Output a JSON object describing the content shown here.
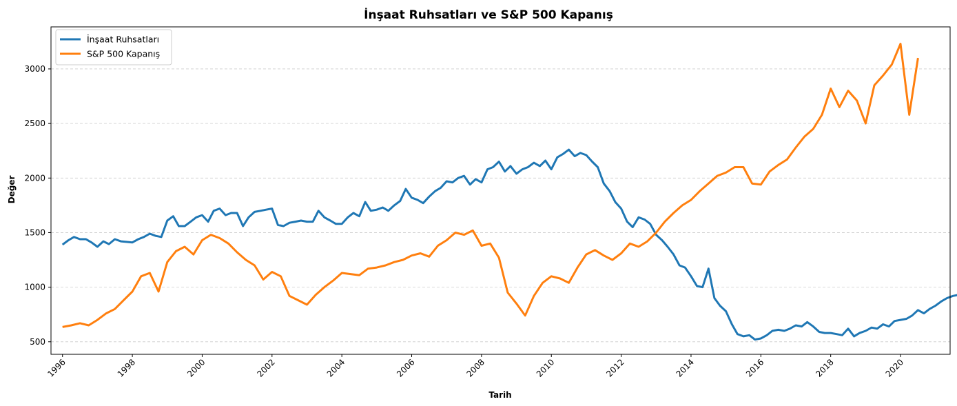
{
  "chart_data": {
    "type": "line",
    "title": "İnşaat Ruhsatları ve S&P 500 Kapanış",
    "xlabel": "Tarih",
    "ylabel": "Değer",
    "xlim": [
      1995.67,
      2021.42
    ],
    "ylim": [
      385,
      3385
    ],
    "x_ticks": [
      "1996",
      "1998",
      "2000",
      "2002",
      "2004",
      "2006",
      "2008",
      "2010",
      "2012",
      "2014",
      "2016",
      "2018",
      "2020"
    ],
    "y_ticks": [
      "500",
      "1000",
      "1500",
      "2000",
      "2500",
      "3000"
    ],
    "grid": "horizontal dashed",
    "legend_position": "upper-left",
    "series": [
      {
        "name": "İnşaat Ruhsatları",
        "color": "#1f77b4",
        "points": [
          [
            1996.0,
            1390
          ],
          [
            1996.17,
            1430
          ],
          [
            1996.33,
            1460
          ],
          [
            1996.5,
            1440
          ],
          [
            1996.67,
            1440
          ],
          [
            1996.83,
            1410
          ],
          [
            1997.0,
            1370
          ],
          [
            1997.17,
            1420
          ],
          [
            1997.33,
            1395
          ],
          [
            1997.5,
            1440
          ],
          [
            1997.67,
            1420
          ],
          [
            1997.83,
            1415
          ],
          [
            1998.0,
            1410
          ],
          [
            1998.17,
            1440
          ],
          [
            1998.33,
            1460
          ],
          [
            1998.5,
            1490
          ],
          [
            1998.67,
            1470
          ],
          [
            1998.83,
            1460
          ],
          [
            1999.0,
            1610
          ],
          [
            1999.17,
            1650
          ],
          [
            1999.33,
            1560
          ],
          [
            1999.5,
            1560
          ],
          [
            1999.67,
            1600
          ],
          [
            1999.83,
            1640
          ],
          [
            2000.0,
            1660
          ],
          [
            2000.17,
            1600
          ],
          [
            2000.33,
            1700
          ],
          [
            2000.5,
            1720
          ],
          [
            2000.67,
            1660
          ],
          [
            2000.83,
            1680
          ],
          [
            2001.0,
            1680
          ],
          [
            2001.17,
            1560
          ],
          [
            2001.33,
            1640
          ],
          [
            2001.5,
            1690
          ],
          [
            2001.67,
            1700
          ],
          [
            2001.83,
            1710
          ],
          [
            2002.0,
            1720
          ],
          [
            2002.17,
            1570
          ],
          [
            2002.33,
            1560
          ],
          [
            2002.5,
            1590
          ],
          [
            2002.67,
            1600
          ],
          [
            2002.83,
            1610
          ],
          [
            2003.0,
            1600
          ],
          [
            2003.17,
            1600
          ],
          [
            2003.33,
            1700
          ],
          [
            2003.5,
            1640
          ],
          [
            2003.67,
            1610
          ],
          [
            2003.83,
            1580
          ],
          [
            2004.0,
            1580
          ],
          [
            2004.17,
            1640
          ],
          [
            2004.33,
            1680
          ],
          [
            2004.5,
            1650
          ],
          [
            2004.67,
            1780
          ],
          [
            2004.83,
            1700
          ],
          [
            2005.0,
            1710
          ],
          [
            2005.17,
            1730
          ],
          [
            2005.33,
            1700
          ],
          [
            2005.5,
            1750
          ],
          [
            2005.67,
            1790
          ],
          [
            2005.83,
            1900
          ],
          [
            2006.0,
            1820
          ],
          [
            2006.17,
            1800
          ],
          [
            2006.33,
            1770
          ],
          [
            2006.5,
            1830
          ],
          [
            2006.67,
            1880
          ],
          [
            2006.83,
            1910
          ],
          [
            2007.0,
            1970
          ],
          [
            2007.17,
            1960
          ],
          [
            2007.33,
            2000
          ],
          [
            2007.5,
            2020
          ],
          [
            2007.67,
            1940
          ],
          [
            2007.83,
            1990
          ],
          [
            2008.0,
            1960
          ],
          [
            2008.17,
            2080
          ],
          [
            2008.33,
            2100
          ],
          [
            2008.5,
            2150
          ],
          [
            2008.67,
            2060
          ],
          [
            2008.83,
            2110
          ],
          [
            2009.0,
            2040
          ],
          [
            2009.17,
            2080
          ],
          [
            2009.33,
            2100
          ],
          [
            2009.5,
            2140
          ],
          [
            2009.67,
            2110
          ],
          [
            2009.83,
            2160
          ],
          [
            2010.0,
            2080
          ],
          [
            2010.17,
            2190
          ],
          [
            2010.33,
            2220
          ],
          [
            2010.5,
            2260
          ],
          [
            2010.67,
            2200
          ],
          [
            2010.83,
            2230
          ],
          [
            2011.0,
            2210
          ],
          [
            2011.17,
            2150
          ],
          [
            2011.33,
            2100
          ],
          [
            2011.5,
            1950
          ],
          [
            2011.67,
            1880
          ],
          [
            2011.83,
            1780
          ],
          [
            2012.0,
            1720
          ],
          [
            2012.17,
            1600
          ],
          [
            2012.33,
            1550
          ],
          [
            2012.5,
            1640
          ],
          [
            2012.67,
            1620
          ],
          [
            2012.83,
            1580
          ],
          [
            2013.0,
            1480
          ],
          [
            2013.17,
            1430
          ],
          [
            2013.33,
            1370
          ],
          [
            2013.5,
            1300
          ],
          [
            2013.67,
            1200
          ],
          [
            2013.83,
            1180
          ],
          [
            2014.0,
            1100
          ],
          [
            2014.17,
            1010
          ],
          [
            2014.33,
            1000
          ],
          [
            2014.5,
            1170
          ],
          [
            2014.67,
            900
          ],
          [
            2014.83,
            830
          ],
          [
            2015.0,
            780
          ],
          [
            2015.17,
            660
          ],
          [
            2015.33,
            570
          ],
          [
            2015.5,
            550
          ],
          [
            2015.67,
            560
          ],
          [
            2015.83,
            520
          ],
          [
            2016.0,
            530
          ],
          [
            2016.17,
            560
          ],
          [
            2016.33,
            600
          ],
          [
            2016.5,
            610
          ],
          [
            2016.67,
            600
          ],
          [
            2016.83,
            620
          ],
          [
            2017.0,
            650
          ],
          [
            2017.17,
            640
          ],
          [
            2017.33,
            680
          ],
          [
            2017.5,
            640
          ],
          [
            2017.67,
            590
          ],
          [
            2017.83,
            580
          ],
          [
            2018.0,
            580
          ],
          [
            2018.17,
            570
          ],
          [
            2018.33,
            560
          ],
          [
            2018.5,
            620
          ],
          [
            2018.67,
            550
          ],
          [
            2018.83,
            580
          ],
          [
            2019.0,
            600
          ],
          [
            2019.17,
            630
          ],
          [
            2019.33,
            620
          ],
          [
            2019.5,
            660
          ],
          [
            2019.67,
            640
          ],
          [
            2019.83,
            690
          ],
          [
            2020.0,
            700
          ],
          [
            2020.17,
            710
          ],
          [
            2020.33,
            740
          ],
          [
            2020.5,
            790
          ],
          [
            2020.67,
            760
          ],
          [
            2020.83,
            800
          ],
          [
            2021.0,
            830
          ],
          [
            2021.17,
            870
          ],
          [
            2021.33,
            900
          ],
          [
            2021.5,
            920
          ],
          [
            2021.67,
            930
          ],
          [
            2021.83,
            950
          ]
        ]
      },
      {
        "name": "S&P 500 Kapanış",
        "color": "#ff7f0e",
        "points": [
          [
            1996.0,
            635
          ],
          [
            1996.25,
            650
          ],
          [
            1996.5,
            670
          ],
          [
            1996.75,
            650
          ],
          [
            1997.0,
            700
          ],
          [
            1997.25,
            760
          ],
          [
            1997.5,
            800
          ],
          [
            1997.75,
            880
          ],
          [
            1998.0,
            960
          ],
          [
            1998.25,
            1100
          ],
          [
            1998.5,
            1130
          ],
          [
            1998.75,
            960
          ],
          [
            1999.0,
            1230
          ],
          [
            1999.25,
            1330
          ],
          [
            1999.5,
            1370
          ],
          [
            1999.75,
            1300
          ],
          [
            2000.0,
            1430
          ],
          [
            2000.25,
            1480
          ],
          [
            2000.5,
            1450
          ],
          [
            2000.75,
            1400
          ],
          [
            2001.0,
            1320
          ],
          [
            2001.25,
            1250
          ],
          [
            2001.5,
            1200
          ],
          [
            2001.75,
            1070
          ],
          [
            2002.0,
            1140
          ],
          [
            2002.25,
            1100
          ],
          [
            2002.5,
            920
          ],
          [
            2002.75,
            880
          ],
          [
            2003.0,
            840
          ],
          [
            2003.25,
            930
          ],
          [
            2003.5,
            1000
          ],
          [
            2003.75,
            1060
          ],
          [
            2004.0,
            1130
          ],
          [
            2004.25,
            1120
          ],
          [
            2004.5,
            1110
          ],
          [
            2004.75,
            1170
          ],
          [
            2005.0,
            1180
          ],
          [
            2005.25,
            1200
          ],
          [
            2005.5,
            1230
          ],
          [
            2005.75,
            1250
          ],
          [
            2006.0,
            1290
          ],
          [
            2006.25,
            1310
          ],
          [
            2006.5,
            1280
          ],
          [
            2006.75,
            1380
          ],
          [
            2007.0,
            1430
          ],
          [
            2007.25,
            1500
          ],
          [
            2007.5,
            1480
          ],
          [
            2007.75,
            1520
          ],
          [
            2008.0,
            1380
          ],
          [
            2008.25,
            1400
          ],
          [
            2008.5,
            1270
          ],
          [
            2008.75,
            950
          ],
          [
            2009.0,
            850
          ],
          [
            2009.25,
            740
          ],
          [
            2009.5,
            920
          ],
          [
            2009.75,
            1040
          ],
          [
            2010.0,
            1100
          ],
          [
            2010.25,
            1080
          ],
          [
            2010.5,
            1040
          ],
          [
            2010.75,
            1180
          ],
          [
            2011.0,
            1300
          ],
          [
            2011.25,
            1340
          ],
          [
            2011.5,
            1290
          ],
          [
            2011.75,
            1250
          ],
          [
            2012.0,
            1310
          ],
          [
            2012.25,
            1400
          ],
          [
            2012.5,
            1370
          ],
          [
            2012.75,
            1420
          ],
          [
            2013.0,
            1500
          ],
          [
            2013.25,
            1600
          ],
          [
            2013.5,
            1680
          ],
          [
            2013.75,
            1750
          ],
          [
            2014.0,
            1800
          ],
          [
            2014.25,
            1880
          ],
          [
            2014.5,
            1950
          ],
          [
            2014.75,
            2020
          ],
          [
            2015.0,
            2050
          ],
          [
            2015.25,
            2100
          ],
          [
            2015.5,
            2100
          ],
          [
            2015.75,
            1950
          ],
          [
            2016.0,
            1940
          ],
          [
            2016.25,
            2060
          ],
          [
            2016.5,
            2120
          ],
          [
            2016.75,
            2170
          ],
          [
            2017.0,
            2280
          ],
          [
            2017.25,
            2380
          ],
          [
            2017.5,
            2450
          ],
          [
            2017.75,
            2580
          ],
          [
            2018.0,
            2820
          ],
          [
            2018.25,
            2650
          ],
          [
            2018.5,
            2800
          ],
          [
            2018.75,
            2710
          ],
          [
            2019.0,
            2500
          ],
          [
            2019.25,
            2850
          ],
          [
            2019.5,
            2940
          ],
          [
            2019.75,
            3040
          ],
          [
            2020.0,
            3230
          ],
          [
            2020.25,
            2580
          ],
          [
            2020.5,
            3100
          ]
        ]
      }
    ]
  }
}
